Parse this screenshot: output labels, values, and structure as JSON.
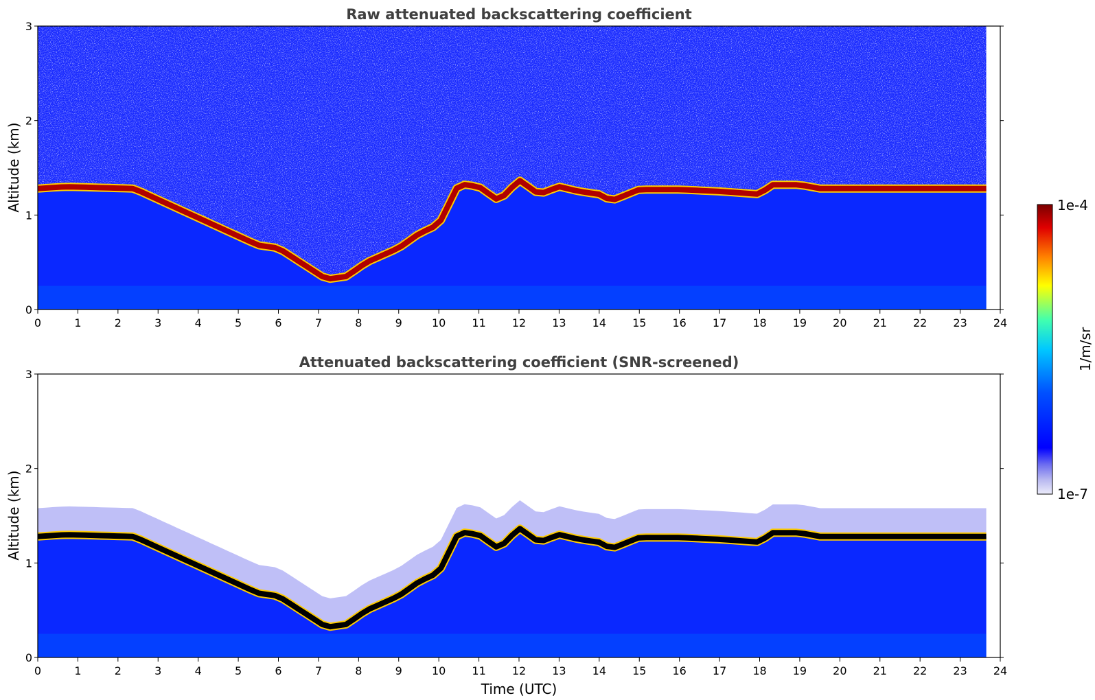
{
  "chart_data": [
    {
      "type": "heatmap",
      "title": "Raw attenuated backscattering coefficient",
      "xlabel": "",
      "ylabel": "Altitude (km)",
      "xlim": [
        0,
        24
      ],
      "ylim": [
        0,
        3
      ],
      "xticks": [
        "0",
        "1",
        "2",
        "3",
        "4",
        "5",
        "6",
        "7",
        "8",
        "9",
        "10",
        "11",
        "12",
        "13",
        "14",
        "15",
        "16",
        "17",
        "18",
        "19",
        "20",
        "21",
        "22",
        "23",
        "24"
      ],
      "yticks": [
        "0",
        "1",
        "2",
        "3"
      ],
      "data_end_hour": 23.65,
      "cloud_layer": {
        "time": [
          0,
          0.7,
          2.4,
          5.5,
          6.0,
          7.2,
          7.7,
          8.2,
          9.0,
          9.5,
          10.0,
          10.5,
          11.0,
          11.5,
          12.0,
          12.5,
          13.0,
          13.5,
          14.0,
          14.3,
          15.0,
          16.0,
          17.0,
          18.0,
          18.3,
          19.0,
          19.5
        ],
        "altitude_km": [
          1.28,
          1.3,
          1.28,
          0.68,
          0.65,
          0.32,
          0.35,
          0.5,
          0.65,
          0.8,
          0.9,
          1.33,
          1.3,
          1.15,
          1.37,
          1.22,
          1.3,
          1.25,
          1.22,
          1.15,
          1.27,
          1.27,
          1.25,
          1.22,
          1.32,
          1.32,
          1.28
        ]
      }
    },
    {
      "type": "heatmap",
      "title": "Attenuated backscattering coefficient (SNR-screened)",
      "xlabel": "Time (UTC)",
      "ylabel": "Altitude (km)",
      "xlim": [
        0,
        24
      ],
      "ylim": [
        0,
        3
      ],
      "xticks": [
        "0",
        "1",
        "2",
        "3",
        "4",
        "5",
        "6",
        "7",
        "8",
        "9",
        "10",
        "11",
        "12",
        "13",
        "14",
        "15",
        "16",
        "17",
        "18",
        "19",
        "20",
        "21",
        "22",
        "23",
        "24"
      ],
      "yticks": [
        "0",
        "1",
        "2",
        "3"
      ],
      "data_end_hour": 23.65,
      "cloud_layer": {
        "time": [
          0,
          0.7,
          2.4,
          5.5,
          6.0,
          7.2,
          7.7,
          8.2,
          9.0,
          9.5,
          10.0,
          10.5,
          11.0,
          11.5,
          12.0,
          12.5,
          13.0,
          13.5,
          14.0,
          14.3,
          15.0,
          16.0,
          17.0,
          18.0,
          18.3,
          19.0,
          19.5
        ],
        "altitude_km": [
          1.28,
          1.3,
          1.28,
          0.68,
          0.65,
          0.32,
          0.35,
          0.5,
          0.65,
          0.8,
          0.9,
          1.33,
          1.3,
          1.15,
          1.37,
          1.22,
          1.3,
          1.25,
          1.22,
          1.15,
          1.27,
          1.27,
          1.25,
          1.22,
          1.32,
          1.32,
          1.28
        ]
      }
    }
  ],
  "colorbar": {
    "max_label": "1e-4",
    "min_label": "1e-7",
    "unit_label": "1/m/sr",
    "colormap": [
      "#e8e8f8",
      "#c8c8f0",
      "#9090f0",
      "#0000ff",
      "#0060ff",
      "#00c0ff",
      "#40ffc0",
      "#ffff00",
      "#ff8000",
      "#e00000",
      "#800000"
    ]
  }
}
